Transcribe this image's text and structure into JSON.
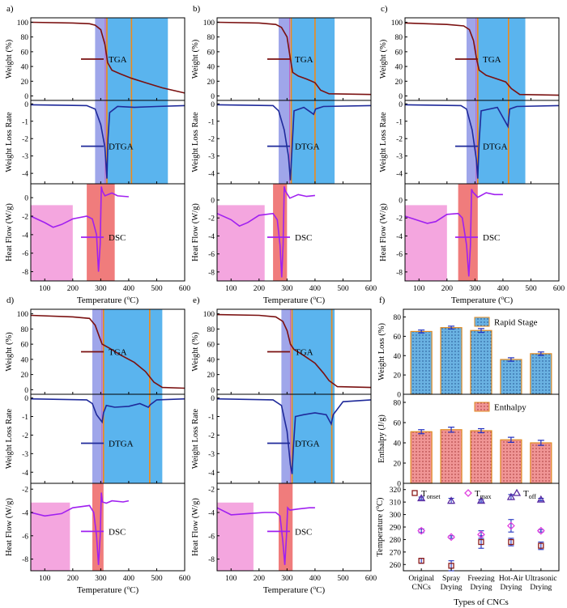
{
  "colors": {
    "tga": "#7a1010",
    "dtga": "#1f2a9a",
    "dsc": "#a020f0",
    "rapid_band": "#5ab4ee",
    "early_band": "#9fa6ea",
    "dsc_band": "#f4a6df",
    "dsc_peak_band": "#f07c7c",
    "t_line_orange": "#f08a18",
    "t_line_purple": "#c060c0",
    "bar_blue": "#6ab2e2",
    "bar_red": "#f09595",
    "bar_edge": "#e08a20",
    "marker_onset": "#8b1a1a",
    "marker_max": "#e040e0",
    "marker_off": "#5a2aa0",
    "err_blue": "#2030c0"
  },
  "panel_labels": [
    "a)",
    "b)",
    "c)",
    "d)",
    "e)",
    "f)"
  ],
  "x_title": "Temperature (",
  "x_title_unit": "C)",
  "x_title_deg": "o",
  "y_titles": {
    "weight": "Weight (%)",
    "rate": "Weight Loss Rate",
    "heat": "Heat Flow (W/g)"
  },
  "legend": {
    "tga": "TGA",
    "dtga": "DTGA",
    "dsc": "DSC"
  },
  "chart_data": [
    {
      "type": "line",
      "panel": "a)",
      "x": [
        50,
        600
      ],
      "rapid_region": [
        280,
        540
      ],
      "early_region": [
        280,
        320
      ],
      "t_lines": [
        322,
        410
      ],
      "tga": [
        [
          50,
          100
        ],
        [
          200,
          99
        ],
        [
          260,
          98
        ],
        [
          280,
          96
        ],
        [
          300,
          90
        ],
        [
          315,
          70
        ],
        [
          325,
          45
        ],
        [
          340,
          35
        ],
        [
          370,
          30
        ],
        [
          410,
          24
        ],
        [
          460,
          18
        ],
        [
          520,
          11
        ],
        [
          600,
          4
        ]
      ],
      "dtga": [
        [
          50,
          -0.05
        ],
        [
          250,
          -0.1
        ],
        [
          280,
          -0.3
        ],
        [
          300,
          -1.2
        ],
        [
          315,
          -2.5
        ],
        [
          322,
          -4.3
        ],
        [
          326,
          -2.0
        ],
        [
          332,
          -0.5
        ],
        [
          360,
          -0.15
        ],
        [
          420,
          -0.2
        ],
        [
          500,
          -0.15
        ],
        [
          600,
          -0.1
        ]
      ],
      "dsc_region": [
        50,
        200
      ],
      "dsc_peak_region": [
        250,
        350
      ],
      "dsc": [
        [
          50,
          -2
        ],
        [
          100,
          -2.7
        ],
        [
          130,
          -3.2
        ],
        [
          160,
          -2.9
        ],
        [
          200,
          -2.3
        ],
        [
          250,
          -2.0
        ],
        [
          270,
          -2.3
        ],
        [
          285,
          -4
        ],
        [
          292,
          -8
        ],
        [
          298,
          -5
        ],
        [
          302,
          1.2
        ],
        [
          306,
          0.7
        ],
        [
          315,
          0.2
        ],
        [
          340,
          0.5
        ],
        [
          360,
          0.2
        ],
        [
          400,
          0.1
        ]
      ],
      "dsc_ylim": [
        -9,
        1.5
      ]
    },
    {
      "type": "line",
      "panel": "b)",
      "x": [
        50,
        600
      ],
      "rapid_region": [
        270,
        470
      ],
      "early_region": [
        270,
        315
      ],
      "t_lines": [
        315,
        400
      ],
      "tga": [
        [
          50,
          100
        ],
        [
          200,
          99
        ],
        [
          260,
          97
        ],
        [
          280,
          93
        ],
        [
          300,
          80
        ],
        [
          310,
          55
        ],
        [
          320,
          32
        ],
        [
          340,
          27
        ],
        [
          370,
          23
        ],
        [
          400,
          18
        ],
        [
          420,
          8
        ],
        [
          450,
          3
        ],
        [
          600,
          2
        ]
      ],
      "dtga": [
        [
          50,
          -0.05
        ],
        [
          250,
          -0.1
        ],
        [
          270,
          -0.4
        ],
        [
          290,
          -1.5
        ],
        [
          305,
          -3
        ],
        [
          312,
          -4.4
        ],
        [
          318,
          -2.5
        ],
        [
          325,
          -0.4
        ],
        [
          360,
          -0.2
        ],
        [
          395,
          -0.6
        ],
        [
          402,
          -0.3
        ],
        [
          430,
          -0.15
        ],
        [
          600,
          -0.1
        ]
      ],
      "dsc_region": [
        50,
        220
      ],
      "dsc_peak_region": [
        250,
        300
      ],
      "dsc": [
        [
          50,
          -1.5
        ],
        [
          100,
          -2.2
        ],
        [
          130,
          -2.9
        ],
        [
          160,
          -2.5
        ],
        [
          200,
          -1.7
        ],
        [
          250,
          -1.5
        ],
        [
          265,
          -2.2
        ],
        [
          275,
          -5
        ],
        [
          281,
          -8.6
        ],
        [
          286,
          -5
        ],
        [
          290,
          1.5
        ],
        [
          294,
          1.0
        ],
        [
          310,
          0.2
        ],
        [
          340,
          0.6
        ],
        [
          370,
          0.4
        ],
        [
          400,
          0.5
        ]
      ],
      "dsc_ylim": [
        -9,
        1.8
      ]
    },
    {
      "type": "line",
      "panel": "c)",
      "x": [
        50,
        600
      ],
      "rapid_region": [
        270,
        480
      ],
      "early_region": [
        270,
        310
      ],
      "t_lines": [
        310,
        420
      ],
      "tga": [
        [
          50,
          99
        ],
        [
          200,
          97
        ],
        [
          260,
          95
        ],
        [
          280,
          90
        ],
        [
          295,
          75
        ],
        [
          305,
          52
        ],
        [
          315,
          35
        ],
        [
          340,
          28
        ],
        [
          380,
          23
        ],
        [
          410,
          19
        ],
        [
          430,
          10
        ],
        [
          460,
          2
        ],
        [
          600,
          1
        ]
      ],
      "dtga": [
        [
          50,
          -0.05
        ],
        [
          250,
          -0.1
        ],
        [
          270,
          -0.3
        ],
        [
          290,
          -1.5
        ],
        [
          305,
          -3.2
        ],
        [
          310,
          -4.3
        ],
        [
          315,
          -2.2
        ],
        [
          322,
          -0.4
        ],
        [
          380,
          -0.2
        ],
        [
          418,
          -1.3
        ],
        [
          424,
          -0.3
        ],
        [
          450,
          -0.15
        ],
        [
          600,
          -0.1
        ]
      ],
      "dsc_region": [
        50,
        200
      ],
      "dsc_peak_region": [
        240,
        310
      ],
      "dsc": [
        [
          50,
          -1.8
        ],
        [
          100,
          -2.3
        ],
        [
          130,
          -2.6
        ],
        [
          160,
          -2.4
        ],
        [
          200,
          -1.6
        ],
        [
          240,
          -1.5
        ],
        [
          255,
          -2.0
        ],
        [
          270,
          -5
        ],
        [
          278,
          -8.5
        ],
        [
          284,
          -5
        ],
        [
          288,
          1.2
        ],
        [
          292,
          0.9
        ],
        [
          310,
          0.3
        ],
        [
          340,
          0.8
        ],
        [
          370,
          0.6
        ],
        [
          400,
          0.6
        ]
      ],
      "dsc_ylim": [
        -9,
        1.8
      ]
    },
    {
      "type": "line",
      "panel": "d)",
      "x": [
        50,
        600
      ],
      "rapid_region": [
        270,
        520
      ],
      "early_region": [
        270,
        310
      ],
      "t_lines": [
        310,
        475
      ],
      "tga": [
        [
          50,
          98
        ],
        [
          200,
          96
        ],
        [
          260,
          94
        ],
        [
          280,
          85
        ],
        [
          295,
          70
        ],
        [
          305,
          60
        ],
        [
          330,
          55
        ],
        [
          370,
          46
        ],
        [
          420,
          36
        ],
        [
          460,
          24
        ],
        [
          490,
          10
        ],
        [
          520,
          3
        ],
        [
          600,
          2
        ]
      ],
      "dtga": [
        [
          50,
          -0.05
        ],
        [
          250,
          -0.1
        ],
        [
          270,
          -0.3
        ],
        [
          285,
          -0.9
        ],
        [
          300,
          -1.2
        ],
        [
          305,
          -1.3
        ],
        [
          310,
          -0.8
        ],
        [
          320,
          -0.4
        ],
        [
          350,
          -0.5
        ],
        [
          400,
          -0.45
        ],
        [
          440,
          -0.3
        ],
        [
          470,
          -0.5
        ],
        [
          478,
          -0.35
        ],
        [
          500,
          -0.1
        ],
        [
          600,
          -0.05
        ]
      ],
      "dsc_region": [
        50,
        190
      ],
      "dsc_peak_region": [
        270,
        310
      ],
      "dsc": [
        [
          50,
          -4
        ],
        [
          100,
          -4.3
        ],
        [
          160,
          -4.1
        ],
        [
          200,
          -3.6
        ],
        [
          260,
          -3.4
        ],
        [
          275,
          -4
        ],
        [
          285,
          -6
        ],
        [
          292,
          -8.5
        ],
        [
          298,
          -6
        ],
        [
          302,
          -2.3
        ],
        [
          306,
          -3.1
        ],
        [
          320,
          -3.2
        ],
        [
          340,
          -3.0
        ],
        [
          380,
          -3.1
        ],
        [
          400,
          -3.0
        ]
      ],
      "dsc_ylim": [
        -9,
        -1.5
      ]
    },
    {
      "type": "line",
      "panel": "e)",
      "x": [
        50,
        600
      ],
      "rapid_region": [
        280,
        470
      ],
      "early_region": [
        280,
        320
      ],
      "t_lines": [
        318,
        460
      ],
      "tga": [
        [
          50,
          99
        ],
        [
          200,
          98
        ],
        [
          260,
          96
        ],
        [
          285,
          90
        ],
        [
          300,
          78
        ],
        [
          312,
          60
        ],
        [
          325,
          53
        ],
        [
          360,
          45
        ],
        [
          400,
          35
        ],
        [
          430,
          22
        ],
        [
          450,
          12
        ],
        [
          480,
          4
        ],
        [
          600,
          3
        ]
      ],
      "dtga": [
        [
          50,
          -0.05
        ],
        [
          250,
          -0.1
        ],
        [
          280,
          -0.4
        ],
        [
          300,
          -1.8
        ],
        [
          312,
          -3.6
        ],
        [
          318,
          -4.1
        ],
        [
          322,
          -2.8
        ],
        [
          330,
          -1.0
        ],
        [
          360,
          -0.9
        ],
        [
          400,
          -0.8
        ],
        [
          440,
          -0.9
        ],
        [
          458,
          -1.4
        ],
        [
          465,
          -0.9
        ],
        [
          500,
          -0.2
        ],
        [
          600,
          -0.1
        ]
      ],
      "dsc_region": [
        50,
        180
      ],
      "dsc_peak_region": [
        270,
        320
      ],
      "dsc": [
        [
          50,
          -3.6
        ],
        [
          100,
          -4.2
        ],
        [
          160,
          -4.1
        ],
        [
          220,
          -4.0
        ],
        [
          260,
          -4.0
        ],
        [
          275,
          -4.3
        ],
        [
          285,
          -6.5
        ],
        [
          292,
          -8.5
        ],
        [
          298,
          -6
        ],
        [
          302,
          -3.6
        ],
        [
          310,
          -3.8
        ],
        [
          340,
          -3.7
        ],
        [
          380,
          -3.6
        ],
        [
          400,
          -3.6
        ]
      ],
      "dsc_ylim": [
        -9,
        -1.5
      ]
    },
    {
      "type": "bar",
      "panel": "f)",
      "categories": [
        "Original CNCs",
        "Spray Drying",
        "Freezing Drying",
        "Hot-Air Drying",
        "Ultrasonic Drying"
      ],
      "category_lines": [
        [
          "Original",
          "CNCs"
        ],
        [
          "Spray",
          "Drying"
        ],
        [
          "Freezing",
          "Drying"
        ],
        [
          "Hot-Air",
          "Drying"
        ],
        [
          "Ultrasonic",
          "Drying"
        ]
      ],
      "xlabel": "Types of CNCs",
      "weight_loss": {
        "ylabel": "Weight Loss (%)",
        "legend": "Rapid Stage",
        "values": [
          65,
          69,
          66,
          36,
          42
        ],
        "errors": [
          1.5,
          1.5,
          2,
          1.8,
          1.8
        ],
        "ylim": [
          0,
          80
        ]
      },
      "enthalpy": {
        "ylabel": "Enthalpy (J/g)",
        "legend": "Enthalpy",
        "values": [
          51,
          53,
          52,
          43,
          40
        ],
        "errors": [
          2,
          2.5,
          2,
          2.5,
          2.5
        ],
        "ylim": [
          0,
          80
        ]
      },
      "temperatures": {
        "ylabel": "Temperature (",
        "ylabel_unit": "C)",
        "legend_onset": [
          "T",
          "onset"
        ],
        "legend_max": [
          "T",
          "max"
        ],
        "legend_off": [
          "T",
          "off"
        ],
        "onset": [
          263,
          259,
          278,
          278,
          275
        ],
        "onset_err": [
          2,
          4,
          5,
          3,
          3
        ],
        "max": [
          287,
          282,
          284,
          291,
          287
        ],
        "max_err": [
          1.5,
          1,
          3,
          5,
          1
        ],
        "off": [
          313,
          311,
          311,
          314,
          312
        ],
        "off_err": [
          1,
          2,
          1,
          2,
          1
        ],
        "ylim": [
          255,
          325
        ]
      }
    }
  ],
  "ticks": {
    "x": [
      100,
      200,
      300,
      400,
      500,
      600
    ],
    "weight": [
      0,
      20,
      40,
      60,
      80,
      100
    ],
    "rate": [
      -4,
      -3,
      -2,
      -1,
      0
    ],
    "heat_neg": [
      -8,
      -6,
      -4,
      -2,
      0
    ],
    "heat_low": [
      -8,
      -6,
      -4,
      -2
    ],
    "f_weight": [
      0,
      20,
      40,
      60,
      80
    ],
    "f_enth": [
      0,
      20,
      40,
      60,
      80
    ],
    "f_temp": [
      260,
      270,
      280,
      290,
      300,
      310,
      320
    ]
  }
}
